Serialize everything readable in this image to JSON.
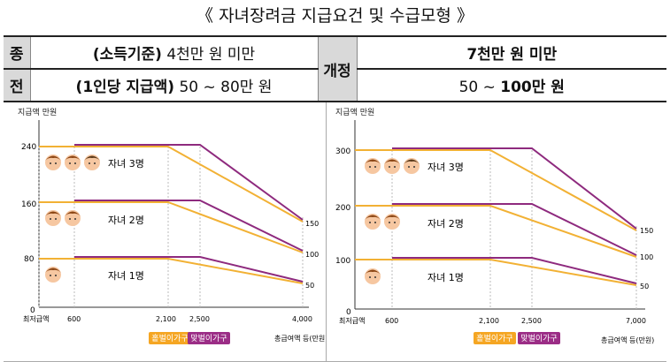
{
  "title": "《 자녀장려금 지급요건 및 수급모형 》",
  "table": {
    "before_label_1": "종",
    "before_label_2": "전",
    "before_income_bold": "(소득기준)",
    "before_income_rest": " 4천만 원 미만",
    "before_amount_bold": "(1인당 지급액)",
    "before_amount_rest": " 50 ~ 80만 원",
    "after_label": "개정",
    "after_income": "7천만 원 미만",
    "after_amount_prefix": "50 ~ ",
    "after_amount_bold": "100만 원"
  },
  "left_chart": {
    "ylabel": "지급액 만원",
    "x_axis_label": "총급여액 등(만원)",
    "origin_label": "0",
    "x_ticks": [
      "최저급액",
      "600",
      "2,100",
      "2,500",
      "4,000"
    ],
    "y_ticks": [
      "240",
      "160",
      "80"
    ],
    "series": [
      {
        "name": "자녀 3명",
        "children": 3,
        "right_value": "150"
      },
      {
        "name": "자녀 2명",
        "children": 2,
        "right_value": "100"
      },
      {
        "name": "자녀 1명",
        "children": 1,
        "right_value": "50"
      }
    ],
    "legend_dual": "홑벌이가구",
    "legend_single": "맞벌이가구"
  },
  "right_chart": {
    "ylabel": "지급액 만원",
    "x_axis_label": "총급여액 등(만원)",
    "origin_label": "0",
    "x_ticks": [
      "최저급액",
      "600",
      "2,100",
      "2,500",
      "7,000"
    ],
    "y_ticks": [
      "300",
      "200",
      "100"
    ],
    "series": [
      {
        "name": "자녀 3명",
        "children": 3,
        "right_value": "150"
      },
      {
        "name": "자녀 2명",
        "children": 2,
        "right_value": "100"
      },
      {
        "name": "자녀 1명",
        "children": 1,
        "right_value": "50"
      }
    ],
    "legend_dual": "홑벌이가구",
    "legend_single": "맞벌이가구"
  },
  "colors": {
    "dual_line": "#f2b134",
    "single_line": "#8e2a7e",
    "ref_line": "#cfcfcf",
    "header_bg": "#d9d9d9"
  }
}
